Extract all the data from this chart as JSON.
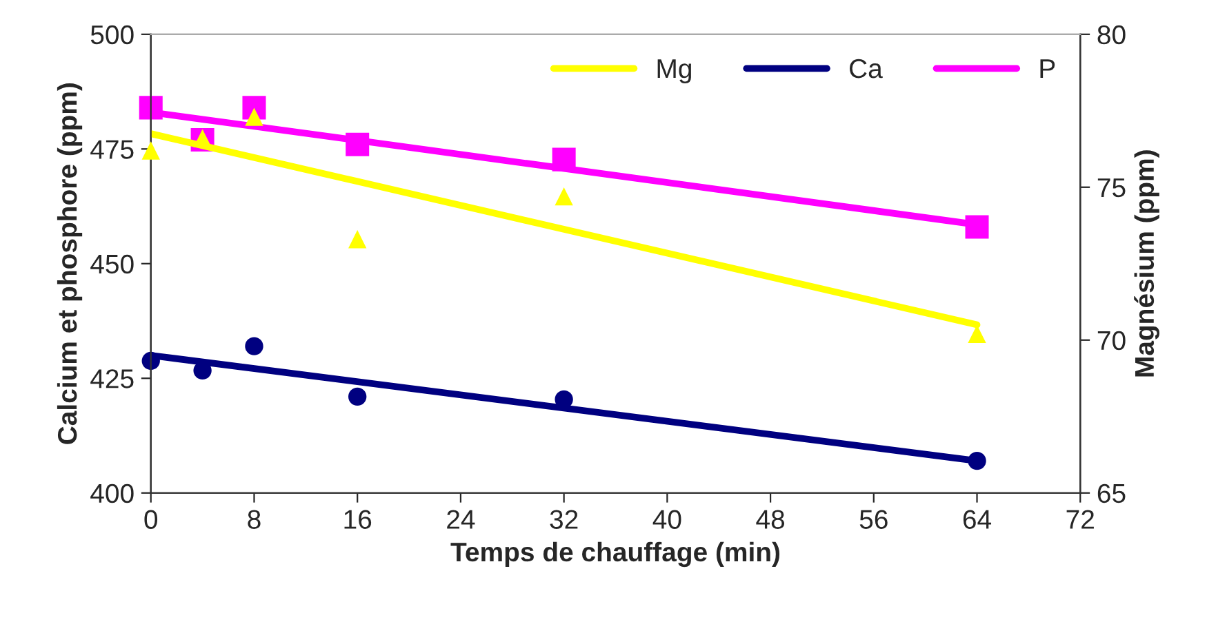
{
  "chart_data": {
    "type": "scatter",
    "xlabel": "Temps de chauffage (min)",
    "ylabel": "Calcium et phosphore (ppm)",
    "y2label": "Magnésium (ppm)",
    "xlim": [
      0,
      72
    ],
    "xticks": [
      0,
      8,
      16,
      24,
      32,
      40,
      48,
      56,
      64,
      72
    ],
    "ylim": [
      400,
      500
    ],
    "yticks": [
      400,
      425,
      450,
      475,
      500
    ],
    "y2lim": [
      65,
      80
    ],
    "y2ticks": [
      65,
      70,
      75,
      80
    ],
    "grid": false,
    "legend": "top right",
    "series": [
      {
        "marker": "triangle",
        "color": "#ffff00",
        "axis": "y2",
        "x": [
          0,
          4,
          8,
          16,
          32,
          64
        ],
        "values": [
          76.2,
          76.6,
          77.3,
          73.3,
          74.7,
          70.2
        ]
      },
      {
        "marker": "circle",
        "color": "#000080",
        "x": [
          0,
          4,
          8,
          16,
          32,
          64
        ],
        "values": [
          428.8,
          426.7,
          432,
          421,
          420.4,
          407
        ]
      },
      {
        "marker": "square",
        "color": "#ff00ff",
        "x": [
          0,
          4,
          8,
          16,
          32,
          64
        ],
        "values": [
          484,
          477,
          484,
          476,
          472.7,
          458
        ]
      },
      {
        "type": "line",
        "name": "Mg",
        "color": "#ffff00",
        "axis": "y2",
        "x": [
          0,
          64
        ],
        "values": [
          76.75,
          70.5
        ]
      },
      {
        "type": "line",
        "name": "Ca",
        "color": "#000080",
        "x": [
          0,
          64
        ],
        "values": [
          430,
          407
        ]
      },
      {
        "type": "line",
        "name": "P",
        "color": "#ff00ff",
        "x": [
          0,
          64
        ],
        "values": [
          483,
          458.5
        ]
      }
    ]
  }
}
